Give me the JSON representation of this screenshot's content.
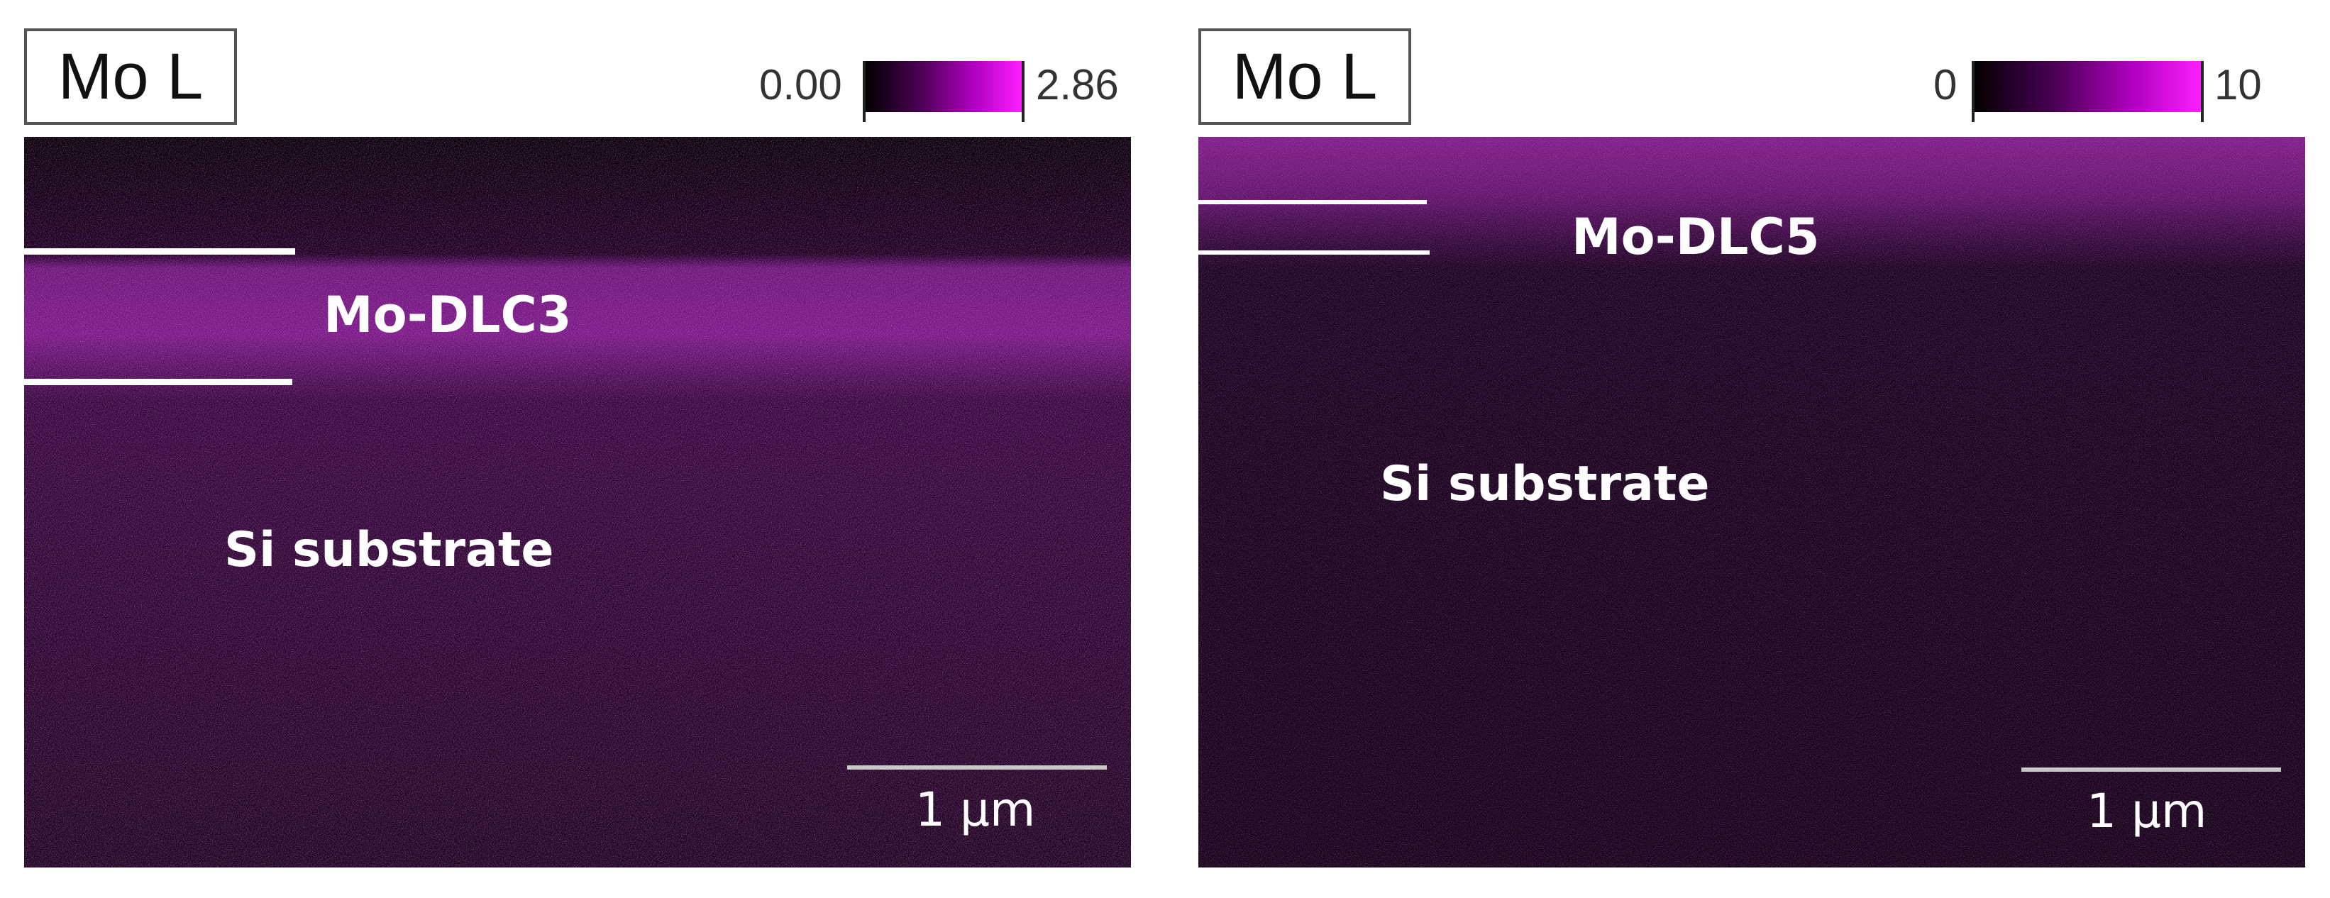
{
  "panels": [
    {
      "element_label": "Mo L",
      "colorbar": {
        "min": "0.00",
        "max": "2.86"
      },
      "sample_label": "Mo-DLC3",
      "substrate_label": "Si substrate",
      "scale_bar": "1 μm"
    },
    {
      "element_label": "Mo L",
      "colorbar": {
        "min": "0",
        "max": "10"
      },
      "sample_label": "Mo-DLC5",
      "substrate_label": "Si substrate",
      "scale_bar": "1 μm"
    }
  ],
  "colors": {
    "map_magenta": "#e040f0",
    "background": "#120414"
  }
}
